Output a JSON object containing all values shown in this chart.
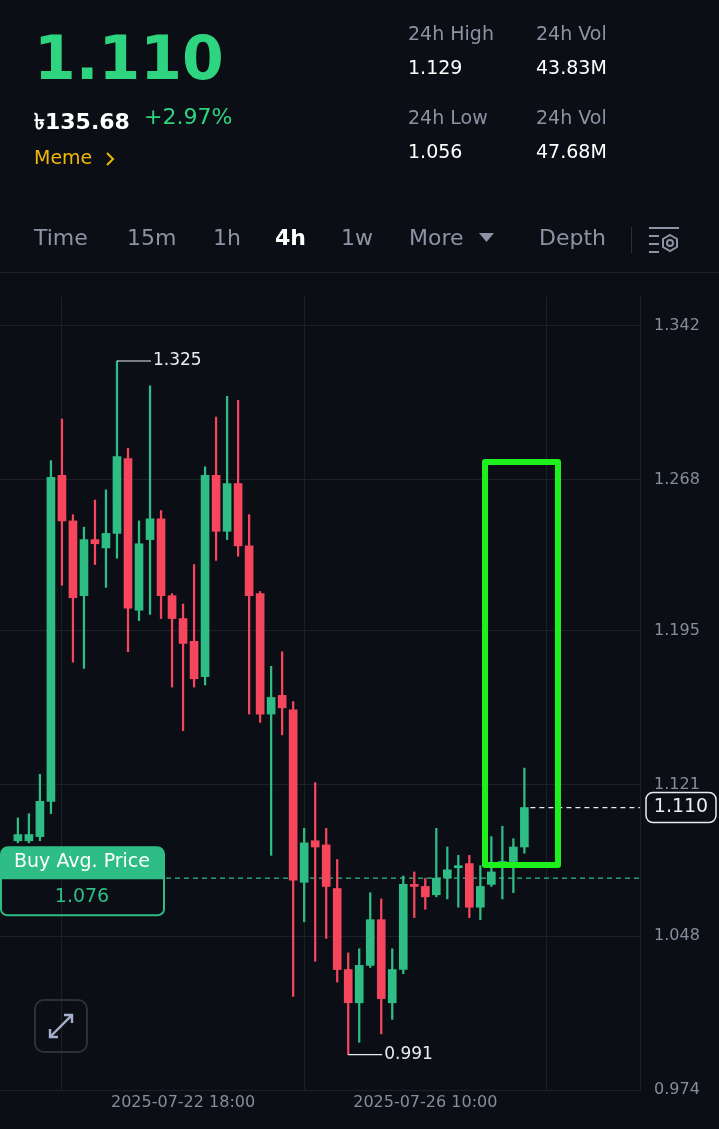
{
  "chart_data": {
    "type": "candlestick",
    "x": [
      "2025-07-20T06:00",
      "2025-07-20T10:00",
      "2025-07-20T14:00",
      "2025-07-20T18:00",
      "2025-07-20T22:00",
      "2025-07-21T02:00",
      "2025-07-21T06:00",
      "2025-07-21T10:00",
      "2025-07-21T14:00",
      "2025-07-21T18:00",
      "2025-07-21T22:00",
      "2025-07-22T02:00",
      "2025-07-22T06:00",
      "2025-07-22T10:00",
      "2025-07-22T14:00",
      "2025-07-22T18:00",
      "2025-07-22T22:00",
      "2025-07-23T02:00",
      "2025-07-23T06:00",
      "2025-07-23T10:00",
      "2025-07-23T14:00",
      "2025-07-23T18:00",
      "2025-07-23T22:00",
      "2025-07-24T02:00",
      "2025-07-24T06:00",
      "2025-07-24T10:00",
      "2025-07-24T14:00",
      "2025-07-24T18:00",
      "2025-07-24T22:00",
      "2025-07-25T02:00",
      "2025-07-25T06:00",
      "2025-07-25T10:00",
      "2025-07-25T14:00",
      "2025-07-25T18:00",
      "2025-07-25T22:00",
      "2025-07-26T02:00",
      "2025-07-26T06:00",
      "2025-07-26T10:00",
      "2025-07-26T14:00",
      "2025-07-26T18:00",
      "2025-07-26T22:00",
      "2025-07-27T02:00",
      "2025-07-27T06:00",
      "2025-07-27T10:00",
      "2025-07-27T14:00",
      "2025-07-27T18:00",
      "2025-07-27T22:00"
    ],
    "ohlc": [
      [
        1.094,
        1.105,
        1.093,
        1.097
      ],
      [
        1.094,
        1.107,
        1.093,
        1.097
      ],
      [
        1.096,
        1.126,
        1.094,
        1.113
      ],
      [
        1.113,
        1.277,
        1.107,
        1.269
      ],
      [
        1.27,
        1.297,
        1.217,
        1.248
      ],
      [
        1.248,
        1.251,
        1.18,
        1.211
      ],
      [
        1.212,
        1.245,
        1.177,
        1.239
      ],
      [
        1.239,
        1.258,
        1.227,
        1.237
      ],
      [
        1.235,
        1.263,
        1.216,
        1.242
      ],
      [
        1.242,
        1.325,
        1.23,
        1.279
      ],
      [
        1.278,
        1.283,
        1.185,
        1.206
      ],
      [
        1.205,
        1.248,
        1.2,
        1.237
      ],
      [
        1.239,
        1.313,
        1.203,
        1.249
      ],
      [
        1.249,
        1.253,
        1.201,
        1.212
      ],
      [
        1.212,
        1.213,
        1.168,
        1.201
      ],
      [
        1.201,
        1.208,
        1.147,
        1.189
      ],
      [
        1.19,
        1.227,
        1.168,
        1.172
      ],
      [
        1.173,
        1.274,
        1.169,
        1.27
      ],
      [
        1.27,
        1.298,
        1.229,
        1.243
      ],
      [
        1.243,
        1.308,
        1.239,
        1.266
      ],
      [
        1.266,
        1.306,
        1.231,
        1.236
      ],
      [
        1.236,
        1.251,
        1.155,
        1.212
      ],
      [
        1.213,
        1.214,
        1.151,
        1.155
      ],
      [
        1.155,
        1.178,
        1.087,
        1.163
      ],
      [
        1.164,
        1.185,
        1.145,
        1.158
      ],
      [
        1.157,
        1.161,
        1.019,
        1.075
      ],
      [
        1.074,
        1.1,
        1.055,
        1.093
      ],
      [
        1.094,
        1.122,
        1.036,
        1.091
      ],
      [
        1.092,
        1.1,
        1.047,
        1.072
      ],
      [
        1.071,
        1.085,
        1.026,
        1.032
      ],
      [
        1.032,
        1.04,
        0.991,
        1.016
      ],
      [
        1.016,
        1.042,
        0.997,
        1.034
      ],
      [
        1.034,
        1.069,
        1.033,
        1.056
      ],
      [
        1.056,
        1.066,
        1.001,
        1.018
      ],
      [
        1.016,
        1.042,
        1.008,
        1.032
      ],
      [
        1.032,
        1.077,
        1.03,
        1.073
      ],
      [
        1.073,
        1.079,
        1.057,
        1.072
      ],
      [
        1.072,
        1.076,
        1.061,
        1.067
      ],
      [
        1.068,
        1.1,
        1.067,
        1.076
      ],
      [
        1.076,
        1.091,
        1.066,
        1.08
      ],
      [
        1.081,
        1.087,
        1.062,
        1.082
      ],
      [
        1.083,
        1.087,
        1.057,
        1.062
      ],
      [
        1.062,
        1.082,
        1.056,
        1.072
      ],
      [
        1.073,
        1.096,
        1.072,
        1.079
      ],
      [
        1.083,
        1.101,
        1.066,
        1.084
      ],
      [
        1.084,
        1.095,
        1.069,
        1.091
      ],
      [
        1.091,
        1.129,
        1.088,
        1.11
      ]
    ],
    "colors": [
      "#2ebd85",
      "#2ebd85",
      "#2ebd85",
      "#2ebd85",
      "#f6465d",
      "#f6465d",
      "#2ebd85",
      "#f6465d",
      "#2ebd85",
      "#2ebd85",
      "#f6465d",
      "#2ebd85",
      "#2ebd85",
      "#f6465d",
      "#f6465d",
      "#f6465d",
      "#f6465d",
      "#2ebd85",
      "#f6465d",
      "#2ebd85",
      "#f6465d",
      "#f6465d",
      "#f6465d",
      "#2ebd85",
      "#f6465d",
      "#f6465d",
      "#2ebd85",
      "#f6465d",
      "#f6465d",
      "#f6465d",
      "#f6465d",
      "#2ebd85",
      "#2ebd85",
      "#f6465d",
      "#2ebd85",
      "#2ebd85",
      "#f6465d",
      "#f6465d",
      "#2ebd85",
      "#2ebd85",
      "#2ebd85",
      "#f6465d",
      "#2ebd85",
      "#2ebd85",
      "#2ebd85",
      "#2ebd85",
      "#2ebd85"
    ],
    "xlim": [
      "2025-07-19T23:30",
      "2025-07-29T16:00"
    ],
    "xticks": [
      {
        "value": "2025-07-22T18:00",
        "label": "2025-07-22 18:00"
      },
      {
        "value": "2025-07-26T10:00",
        "label": "2025-07-26 10:00"
      }
    ],
    "ylim": [
      0.974,
      1.356
    ],
    "yticks": [
      0.974,
      1.048,
      1.121,
      1.195,
      1.268,
      1.342
    ],
    "grid": true,
    "ref_lines": [
      {
        "axis": "y",
        "value": 1.076,
        "label": "Buy Avg. Price",
        "color": "#2ebd85",
        "line_style": "dashed"
      },
      {
        "axis": "y",
        "value": 1.11,
        "label": "1.110",
        "color": "#eaecef",
        "line_style": "dashed"
      }
    ],
    "annotations": [
      "1.110",
      "৳135.68",
      "+2.97%",
      "Meme",
      "24h High",
      "1.129",
      "24h Low",
      "1.056",
      "24h Vol",
      "43.83M",
      "24h Vol",
      "47.68M",
      "Time",
      "15m",
      "1h",
      "4h",
      "1w",
      "More",
      "Depth",
      "1.076",
      {
        "text": "1.325",
        "x": "2025-07-21T18:00",
        "y": 1.325
      },
      {
        "text": "0.991",
        "x": "2025-07-25T06:00",
        "y": 0.991
      }
    ]
  }
}
